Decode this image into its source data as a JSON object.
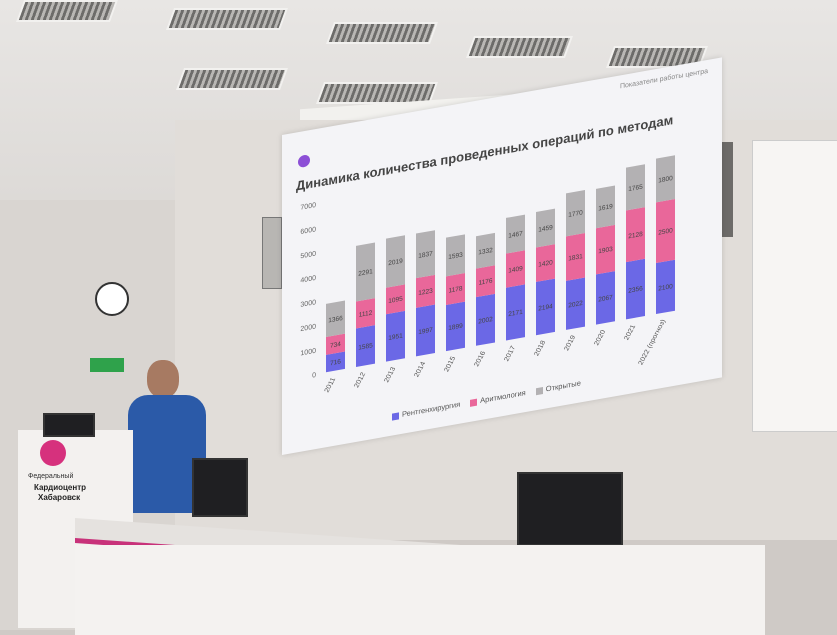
{
  "slide": {
    "header_note": "Показатели работы центра",
    "title": "Динамика количества проведенных операций по методам",
    "legend": [
      {
        "label": "Рентгенхирургия",
        "color": "#6b68e6"
      },
      {
        "label": "Аритмология",
        "color": "#e9679a"
      },
      {
        "label": "Открытые",
        "color": "#b3b1b3"
      }
    ]
  },
  "chart_data": {
    "type": "bar",
    "stacked": true,
    "categories": [
      "2011",
      "2012",
      "2013",
      "2014",
      "2015",
      "2016",
      "2017",
      "2018",
      "2019",
      "2020",
      "2021",
      "2022 (прогноз)"
    ],
    "series": [
      {
        "name": "Рентгенхирургия",
        "values": [
          716,
          1585,
          1951,
          1997,
          1899,
          2002,
          2171,
          2194,
          2022,
          2067,
          2356,
          2100
        ]
      },
      {
        "name": "Аритмология",
        "values": [
          734,
          1112,
          1095,
          1223,
          1178,
          1176,
          1409,
          1420,
          1831,
          1903,
          2128,
          2500
        ]
      },
      {
        "name": "Открытые",
        "values": [
          1366,
          2291,
          2019,
          1837,
          1593,
          1332,
          1467,
          1459,
          1770,
          1619,
          1765,
          1800
        ]
      }
    ],
    "y_ticks": [
      0,
      1000,
      2000,
      3000,
      4000,
      5000,
      6000,
      7000
    ],
    "ylim": [
      0,
      7000
    ]
  },
  "podium": {
    "line1": "Федеральный",
    "line2": "Кардиоцентр",
    "line3": "Хабаровск"
  },
  "exit_sign": "EXIT"
}
